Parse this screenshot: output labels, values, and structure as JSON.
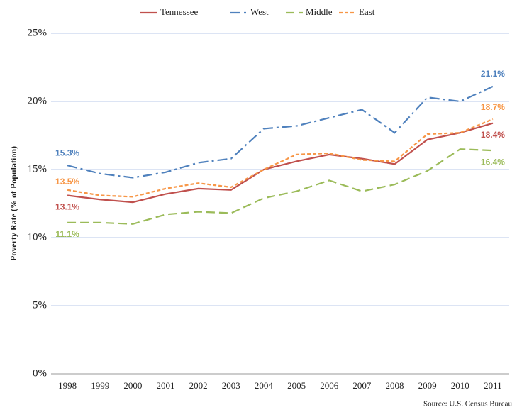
{
  "chart_data": {
    "type": "line",
    "y_label": "Poverty Rate (% of Population)",
    "source": "Source: U.S. Census Bureau",
    "categories": [
      "1998",
      "1999",
      "2000",
      "2001",
      "2002",
      "2003",
      "2004",
      "2005",
      "2006",
      "2007",
      "2008",
      "2009",
      "2010",
      "2011"
    ],
    "series": [
      {
        "name": "Tennessee",
        "color": "#c0504d",
        "line_style": "solid",
        "values": [
          13.1,
          12.8,
          12.6,
          13.2,
          13.6,
          13.5,
          15.0,
          15.6,
          16.1,
          15.8,
          15.4,
          17.2,
          17.7,
          18.4
        ],
        "value_labels": [
          "13.1%",
          null,
          null,
          null,
          null,
          null,
          null,
          null,
          null,
          null,
          null,
          null,
          null,
          "18.4%"
        ]
      },
      {
        "name": "West",
        "color": "#4f81bd",
        "line_style": "dashdot",
        "values": [
          15.3,
          14.7,
          14.4,
          14.8,
          15.5,
          15.8,
          18.0,
          18.2,
          18.8,
          19.4,
          17.7,
          20.3,
          20.0,
          21.1
        ],
        "value_labels": [
          "15.3%",
          null,
          null,
          null,
          null,
          null,
          null,
          null,
          null,
          null,
          null,
          null,
          null,
          "21.1%"
        ]
      },
      {
        "name": "Middle",
        "color": "#9bbb59",
        "line_style": "longdash",
        "values": [
          11.1,
          11.1,
          11.0,
          11.7,
          11.9,
          11.8,
          12.9,
          13.4,
          14.2,
          13.4,
          13.9,
          14.9,
          16.5,
          16.4
        ],
        "value_labels": [
          "11.1%",
          null,
          null,
          null,
          null,
          null,
          null,
          null,
          null,
          null,
          null,
          null,
          null,
          "16.4%"
        ]
      },
      {
        "name": "East",
        "color": "#f79646",
        "line_style": "dash",
        "values": [
          13.5,
          13.1,
          13.0,
          13.6,
          14.0,
          13.7,
          15.0,
          16.1,
          16.2,
          15.7,
          15.6,
          17.6,
          17.7,
          18.7
        ],
        "value_labels": [
          "13.5%",
          null,
          null,
          null,
          null,
          null,
          null,
          null,
          null,
          null,
          null,
          null,
          null,
          "18.7%"
        ]
      }
    ],
    "ylim": [
      0,
      25
    ],
    "yticks": [
      {
        "value": 0,
        "label": "0%"
      },
      {
        "value": 5,
        "label": "5%"
      },
      {
        "value": 10,
        "label": "10%"
      },
      {
        "value": 15,
        "label": "15%"
      },
      {
        "value": 20,
        "label": "20%"
      },
      {
        "value": 25,
        "label": "25%"
      }
    ],
    "grid": true
  }
}
